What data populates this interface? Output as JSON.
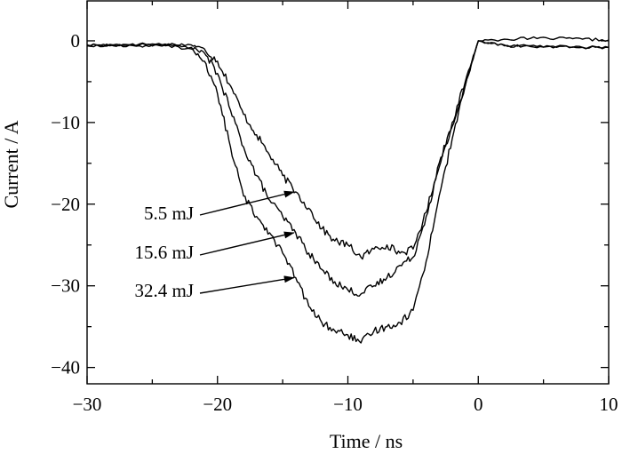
{
  "chart_data": {
    "type": "line",
    "title": "",
    "xlabel": "Time / ns",
    "ylabel": "Current / A",
    "xlim": [
      -30,
      10
    ],
    "ylim": [
      -42,
      5
    ],
    "x_ticks": [
      -30,
      -20,
      -10,
      0,
      10
    ],
    "y_ticks": [
      0,
      -10,
      -20,
      -30,
      -40
    ],
    "grid": false,
    "legend": "none",
    "line_color": "#000000",
    "series": [
      {
        "name": "5.5 mJ",
        "x": [
          -30,
          -28,
          -26,
          -24,
          -22,
          -21,
          -20,
          -19,
          -18,
          -17,
          -16,
          -15,
          -14,
          -13,
          -12,
          -11,
          -10,
          -9,
          -8,
          -7,
          -6,
          -5,
          -4,
          -3,
          -2,
          -1,
          0,
          2,
          4,
          6,
          8,
          10
        ],
        "y": [
          -0.5,
          -0.5,
          -0.4,
          -0.4,
          -0.5,
          -1.0,
          -2.5,
          -5.5,
          -9.0,
          -11.5,
          -14.0,
          -16.5,
          -18.5,
          -20.5,
          -23.0,
          -24.5,
          -25.0,
          -26.5,
          -25.5,
          -25.0,
          -26.0,
          -25.5,
          -21.0,
          -15.0,
          -10.0,
          -5.0,
          0,
          0.2,
          0.3,
          0.3,
          0.2,
          0.1
        ]
      },
      {
        "name": "15.6 mJ",
        "x": [
          -30,
          -28,
          -26,
          -24,
          -22,
          -21,
          -20,
          -19,
          -18,
          -17,
          -16,
          -15,
          -14,
          -13,
          -12,
          -11,
          -10,
          -9,
          -8,
          -7,
          -6,
          -5,
          -4,
          -3,
          -2,
          -1,
          0,
          2,
          4,
          6,
          8,
          10
        ],
        "y": [
          -0.6,
          -0.5,
          -0.5,
          -0.5,
          -0.8,
          -1.5,
          -4.0,
          -8.5,
          -13.0,
          -16.5,
          -19.5,
          -21.5,
          -23.5,
          -26.0,
          -28.0,
          -29.5,
          -30.5,
          -31.0,
          -30.0,
          -29.0,
          -27.5,
          -26.5,
          -21.5,
          -15.5,
          -10.5,
          -5.5,
          0,
          -0.5,
          -0.6,
          -0.7,
          -0.8,
          -0.8
        ]
      },
      {
        "name": "32.4 mJ",
        "x": [
          -30,
          -28,
          -26,
          -24,
          -22,
          -21,
          -20,
          -19,
          -18,
          -17,
          -16,
          -15,
          -14,
          -13,
          -12,
          -11,
          -10,
          -9,
          -8,
          -7,
          -6,
          -5,
          -4,
          -3,
          -2,
          -1,
          0,
          2,
          4,
          6,
          8,
          10
        ],
        "y": [
          -0.6,
          -0.6,
          -0.6,
          -0.6,
          -1.0,
          -2.5,
          -6.5,
          -13.0,
          -19.0,
          -21.5,
          -23.5,
          -26.0,
          -29.0,
          -32.5,
          -34.5,
          -35.5,
          -36.0,
          -37.0,
          -35.5,
          -35.0,
          -34.5,
          -33.0,
          -27.0,
          -19.0,
          -12.0,
          -5.5,
          0,
          -0.6,
          -0.7,
          -0.8,
          -0.8,
          -0.8
        ]
      }
    ],
    "annotations": [
      {
        "text": "5.5 mJ",
        "series": 0,
        "at_x": -14
      },
      {
        "text": "15.6 mJ",
        "series": 1,
        "at_x": -14
      },
      {
        "text": "32.4 mJ",
        "series": 2,
        "at_x": -14
      }
    ]
  }
}
